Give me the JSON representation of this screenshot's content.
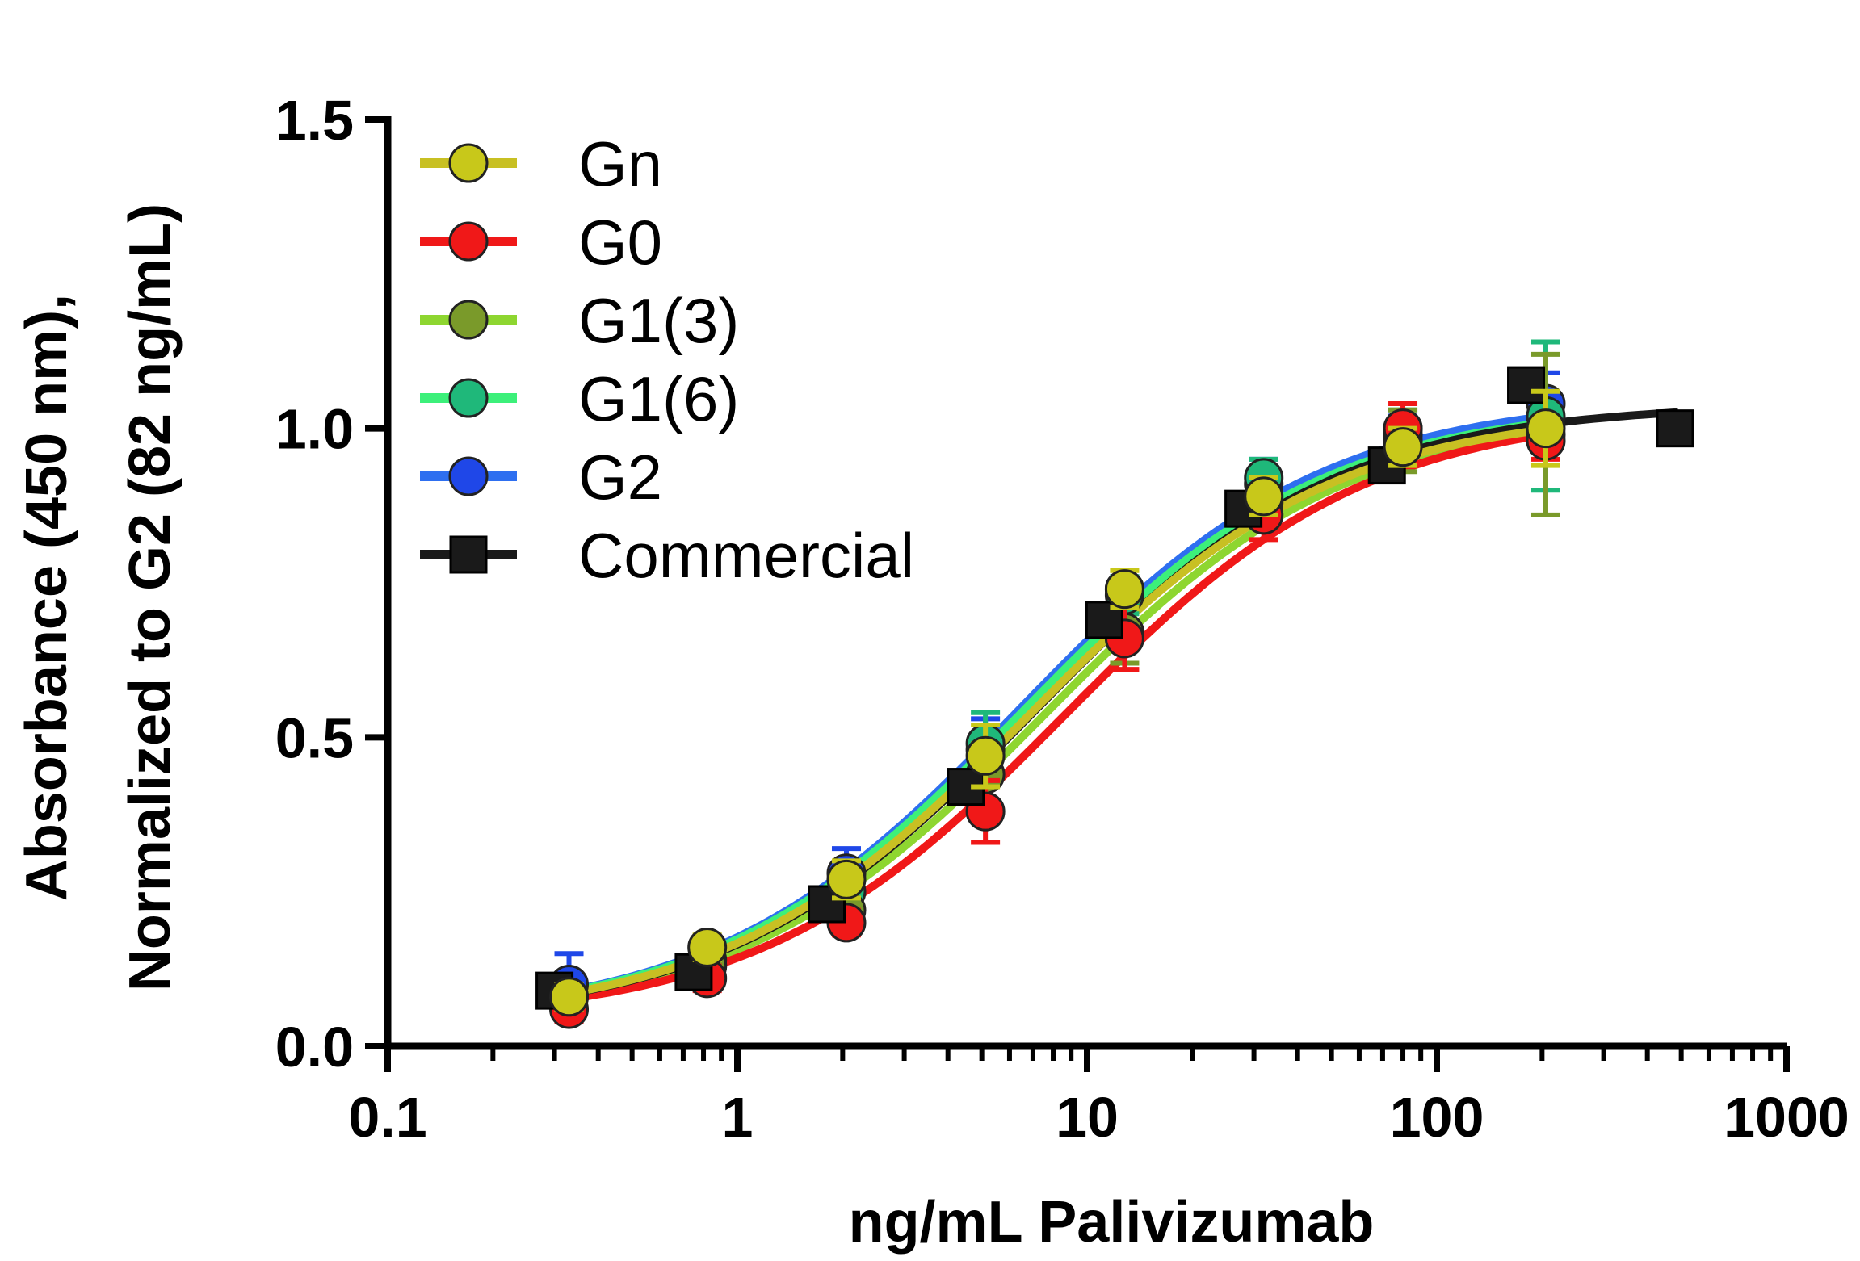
{
  "chart_data": {
    "type": "scatter",
    "title": "",
    "xscale": "log",
    "xlim": [
      0.1,
      1000
    ],
    "ylim": [
      0,
      1.5
    ],
    "xlabel": "ng/mL Palivizumab",
    "ylabel_line1": "Absorbance (450 nm),",
    "ylabel_line2": "Normalized to G2 (82 ng/mL)",
    "xticks": [
      0.1,
      1,
      10,
      100,
      1000
    ],
    "xtick_labels": [
      "0.1",
      "1",
      "10",
      "100",
      "1000"
    ],
    "yticks": [
      0,
      0.5,
      1.0,
      1.5
    ],
    "ytick_labels": [
      "0.0",
      "0.5",
      "1.0",
      "1.5"
    ],
    "legend_position": "top-left",
    "series": [
      {
        "name": "G2",
        "color": "#1f47e8",
        "line_color": "#2e6ff0",
        "marker": "circle",
        "x": [
          0.33,
          0.82,
          2.05,
          5.12,
          12.8,
          32,
          80,
          205
        ],
        "y": [
          0.1,
          0.14,
          0.28,
          0.48,
          0.74,
          0.91,
          0.99,
          1.04
        ],
        "err": [
          0.05,
          0.02,
          0.04,
          0.05,
          0.02,
          0.04,
          0.03,
          0.05
        ],
        "fit": {
          "bottom": 0.04,
          "top": 1.05,
          "ec50": 6.4,
          "hill": 1.0
        }
      },
      {
        "name": "G1(6)",
        "color": "#1fb87a",
        "line_color": "#3cf07a",
        "marker": "circle",
        "x": [
          0.33,
          0.82,
          2.05,
          5.12,
          12.8,
          32,
          80,
          205
        ],
        "y": [
          0.08,
          0.13,
          0.25,
          0.49,
          0.73,
          0.92,
          1.0,
          1.02
        ],
        "err": [
          0.02,
          0.02,
          0.03,
          0.05,
          0.03,
          0.03,
          0.03,
          0.12
        ],
        "fit": {
          "bottom": 0.04,
          "top": 1.04,
          "ec50": 6.5,
          "hill": 1.0
        }
      },
      {
        "name": "G1(3)",
        "color": "#7a9a2a",
        "line_color": "#8ed630",
        "marker": "circle",
        "x": [
          0.33,
          0.82,
          2.05,
          5.12,
          12.8,
          32,
          80,
          205
        ],
        "y": [
          0.08,
          0.13,
          0.22,
          0.44,
          0.67,
          0.88,
          0.98,
          0.99
        ],
        "err": [
          0.02,
          0.02,
          0.03,
          0.05,
          0.05,
          0.04,
          0.05,
          0.13
        ],
        "fit": {
          "bottom": 0.04,
          "top": 1.03,
          "ec50": 7.5,
          "hill": 1.0
        }
      },
      {
        "name": "G0",
        "color": "#f01818",
        "line_color": "#f01818",
        "marker": "circle",
        "x": [
          0.33,
          0.82,
          2.05,
          5.12,
          12.8,
          32,
          80,
          205
        ],
        "y": [
          0.06,
          0.11,
          0.2,
          0.38,
          0.66,
          0.86,
          1.0,
          0.98
        ],
        "err": [
          0.02,
          0.02,
          0.02,
          0.05,
          0.05,
          0.04,
          0.04,
          0.03
        ],
        "fit": {
          "bottom": 0.04,
          "top": 1.03,
          "ec50": 8.6,
          "hill": 1.0
        }
      },
      {
        "name": "Commercial",
        "color": "#1a1a1a",
        "line_color": "#1a1a1a",
        "marker": "square",
        "x": [
          0.3,
          0.75,
          1.8,
          4.5,
          11.2,
          28,
          72,
          180,
          480
        ],
        "y": [
          0.09,
          0.12,
          0.23,
          0.42,
          0.69,
          0.87,
          0.94,
          1.07,
          1.0
        ],
        "err": [
          0,
          0,
          0,
          0,
          0,
          0,
          0,
          0,
          0
        ],
        "fit": {
          "bottom": 0.04,
          "top": 1.04,
          "ec50": 7.0,
          "hill": 1.0
        }
      },
      {
        "name": "Gn",
        "color": "#c8c81a",
        "line_color": "#c8c023",
        "marker": "circle",
        "x": [
          0.33,
          0.82,
          2.05,
          5.12,
          12.8,
          32,
          80,
          205
        ],
        "y": [
          0.08,
          0.16,
          0.27,
          0.47,
          0.74,
          0.89,
          0.97,
          1.0
        ],
        "err": [
          0.02,
          0.02,
          0.03,
          0.05,
          0.03,
          0.03,
          0.03,
          0.06
        ],
        "fit": {
          "bottom": 0.04,
          "top": 1.03,
          "ec50": 6.8,
          "hill": 1.0
        }
      }
    ],
    "legend_order": [
      "Gn",
      "G0",
      "G1(3)",
      "G1(6)",
      "G2",
      "Commercial"
    ]
  }
}
